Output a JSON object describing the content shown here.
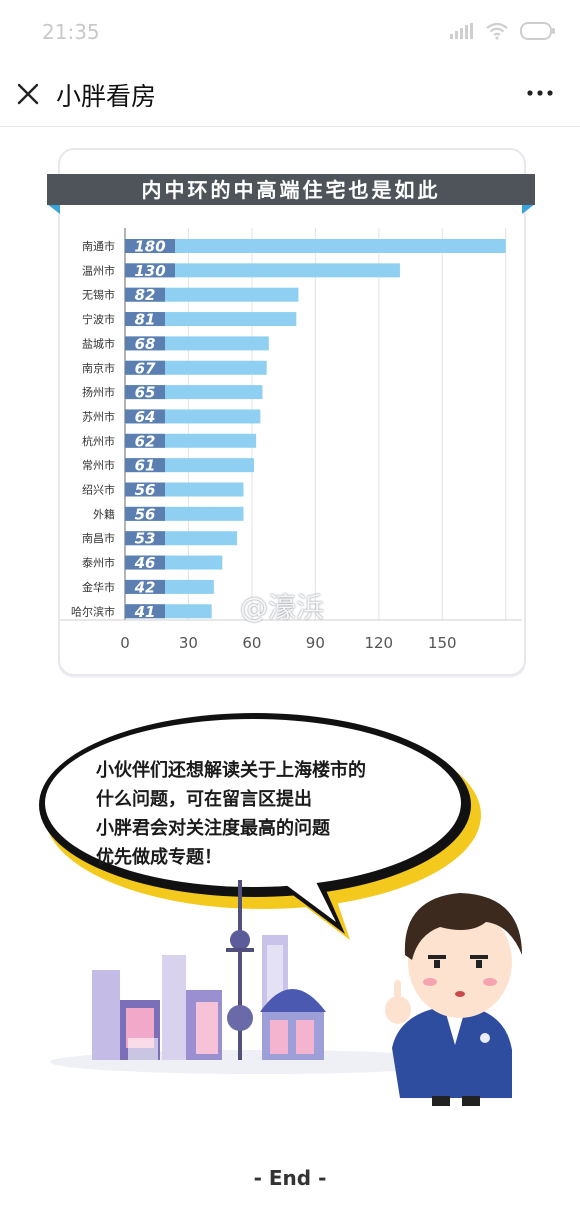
{
  "status_bar": {
    "time": "21:35",
    "icons": [
      "signal-icon",
      "wifi-icon",
      "battery-icon"
    ]
  },
  "nav": {
    "title": "小胖看房",
    "close_icon": "close-icon",
    "more_icon": "more-icon"
  },
  "chart_data": {
    "type": "bar",
    "orientation": "horizontal",
    "title": "内中环的中高端住宅也是如此",
    "categories": [
      "南通市",
      "温州市",
      "无锡市",
      "宁波市",
      "盐城市",
      "南京市",
      "扬州市",
      "苏州市",
      "杭州市",
      "常州市",
      "绍兴市",
      "外籍",
      "南昌市",
      "泰州市",
      "金华市",
      "哈尔滨市"
    ],
    "values": [
      180,
      130,
      82,
      81,
      68,
      67,
      65,
      64,
      62,
      61,
      56,
      56,
      53,
      46,
      42,
      41
    ],
    "value_labels": [
      "180",
      "130",
      "82",
      "81",
      "68",
      "67",
      "65",
      "64",
      "62",
      "61",
      "56",
      "56",
      "53",
      "46",
      "42",
      "41"
    ],
    "x_ticks": [
      "0",
      "30",
      "60",
      "90",
      "120",
      "150"
    ],
    "xlim": [
      0,
      180
    ],
    "grid": true,
    "bar_color": "#8fd0f2",
    "title_bg": "#4e5459",
    "accent": "#5fb4e0"
  },
  "watermark": "@濠浜",
  "speech_bubble": {
    "lines": [
      "小伙伴们还想解读关于上海楼市的",
      "什么问题，可在留言区提出",
      "小胖君会对关注度最高的问题",
      "优先做成专题！"
    ]
  },
  "footer": {
    "end_text": "- End -"
  }
}
